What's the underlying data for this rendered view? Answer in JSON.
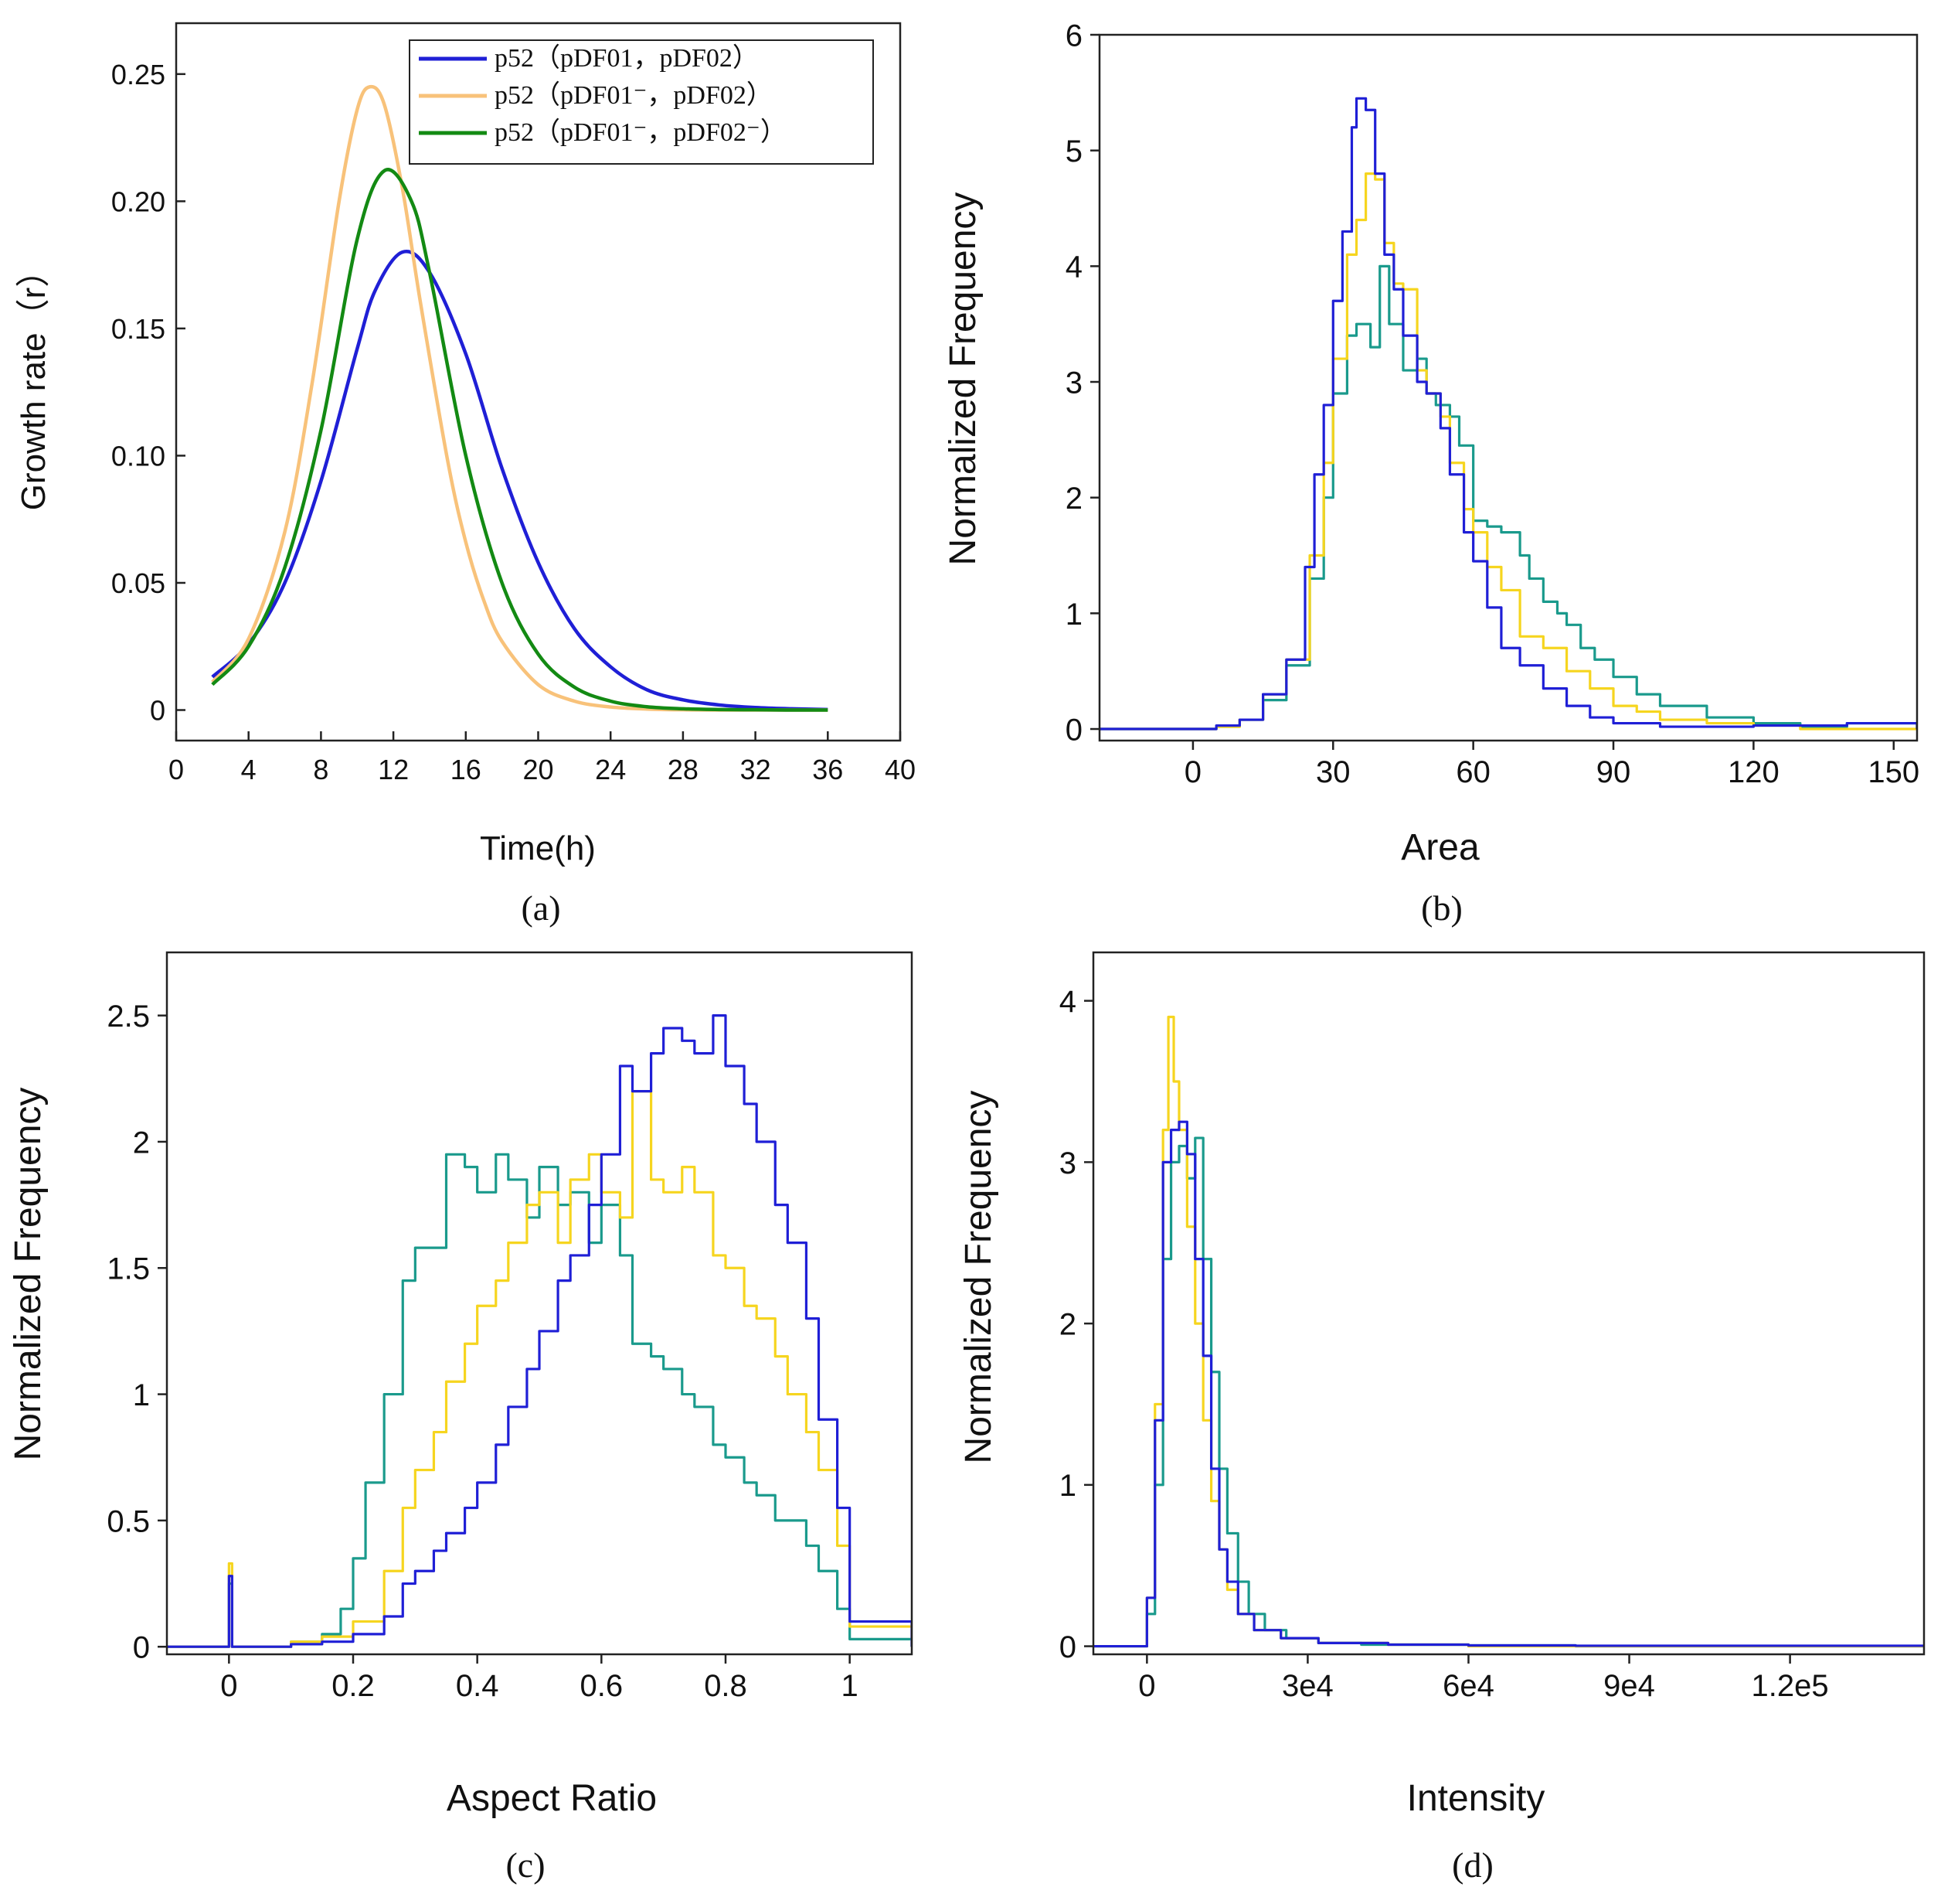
{
  "figure": {
    "panel_tags": [
      "(a)",
      "(b)",
      "(c)",
      "(d)"
    ]
  },
  "colors": {
    "blue": "#1f1fd6",
    "orange": "#f8c27a",
    "green": "#138a13",
    "yellow": "#f6d51f",
    "teal": "#1a9a8c"
  },
  "chart_data": [
    {
      "id": "a",
      "type": "line",
      "title": "",
      "xlabel": "Time(h)",
      "ylabel": "Growth rate（r）",
      "xlim": [
        0,
        40
      ],
      "ylim": [
        -0.012,
        0.27
      ],
      "xticks": [
        0,
        4,
        8,
        12,
        16,
        20,
        24,
        28,
        32,
        36,
        40
      ],
      "xtick_labels": [
        "0",
        "4",
        "8",
        "12",
        "16",
        "20",
        "24",
        "28",
        "32",
        "36",
        "40"
      ],
      "yticks": [
        0,
        0.05,
        0.1,
        0.15,
        0.2,
        0.25
      ],
      "ytick_labels": [
        "0",
        "0.05",
        "0.10",
        "0.15",
        "0.20",
        "0.25"
      ],
      "legend": {
        "position": "top-right",
        "entries": [
          {
            "label": "p52（pDF01，pDF02）",
            "color": "#1f1fd6"
          },
          {
            "label": "p52（pDF01⁻，pDF02）",
            "color": "#f8c27a"
          },
          {
            "label": "p52（pDF01⁻，pDF02⁻）",
            "color": "#138a13"
          }
        ]
      },
      "series": [
        {
          "name": "p52（pDF01，pDF02）",
          "color": "#1f1fd6",
          "x": [
            2,
            4,
            6,
            8,
            10,
            11,
            12.5,
            14,
            16,
            18,
            20,
            22,
            24,
            26,
            28,
            30,
            32,
            34,
            36
          ],
          "y": [
            0.013,
            0.026,
            0.05,
            0.09,
            0.142,
            0.165,
            0.18,
            0.172,
            0.14,
            0.095,
            0.058,
            0.032,
            0.017,
            0.008,
            0.004,
            0.002,
            0.001,
            0.0005,
            0.0002
          ]
        },
        {
          "name": "p52（pDF01⁻，pDF02）",
          "color": "#f8c27a",
          "x": [
            2,
            4,
            6,
            7.5,
            9,
            10,
            10.7,
            11.5,
            12.5,
            13.5,
            15,
            16,
            17,
            18,
            20,
            22,
            24,
            26,
            28,
            30,
            32,
            34,
            36
          ],
          "y": [
            0.011,
            0.028,
            0.07,
            0.128,
            0.2,
            0.236,
            0.245,
            0.238,
            0.205,
            0.16,
            0.098,
            0.066,
            0.043,
            0.027,
            0.01,
            0.0035,
            0.0012,
            0.0004,
            0.0001,
            0,
            0,
            0,
            0
          ]
        },
        {
          "name": "p52（pDF01⁻，pDF02⁻）",
          "color": "#138a13",
          "x": [
            2,
            4,
            6,
            8,
            10,
            11.5,
            13,
            14,
            16,
            18,
            20,
            22,
            24,
            26,
            28,
            30,
            32,
            34,
            36
          ],
          "y": [
            0.01,
            0.025,
            0.056,
            0.11,
            0.185,
            0.212,
            0.2,
            0.172,
            0.1,
            0.05,
            0.022,
            0.009,
            0.0035,
            0.0013,
            0.0005,
            0.0002,
            0.0001,
            0,
            0
          ]
        }
      ]
    },
    {
      "id": "b",
      "type": "step-histogram",
      "title": "",
      "xlabel": "Area",
      "ylabel": "Normalized Frequency",
      "xlim": [
        -20,
        155
      ],
      "ylim": [
        -0.1,
        6
      ],
      "xticks": [
        0,
        30,
        60,
        90,
        120,
        150
      ],
      "xtick_labels": [
        "0",
        "30",
        "60",
        "90",
        "120",
        "150"
      ],
      "yticks": [
        0,
        1,
        2,
        3,
        4,
        5,
        6
      ],
      "ytick_labels": [
        "0",
        "1",
        "2",
        "3",
        "4",
        "5",
        "6"
      ],
      "series": [
        {
          "name": "teal",
          "color": "#1a9a8c",
          "x": [
            -20,
            5,
            10,
            15,
            20,
            25,
            28,
            30,
            33,
            35,
            38,
            40,
            42,
            45,
            48,
            50,
            52,
            55,
            57,
            60,
            63,
            66,
            70,
            72,
            75,
            78,
            80,
            83,
            86,
            90,
            95,
            100,
            110,
            120,
            130,
            140,
            155
          ],
          "y": [
            0,
            0.02,
            0.08,
            0.25,
            0.55,
            1.3,
            2.0,
            2.9,
            3.4,
            3.5,
            3.3,
            4.0,
            3.5,
            3.1,
            3.2,
            2.9,
            2.8,
            2.7,
            2.45,
            1.8,
            1.75,
            1.7,
            1.5,
            1.3,
            1.1,
            1.0,
            0.9,
            0.7,
            0.6,
            0.45,
            0.3,
            0.2,
            0.1,
            0.05,
            0.02,
            0.05,
            0
          ]
        },
        {
          "name": "yellow",
          "color": "#f6d51f",
          "x": [
            -20,
            5,
            10,
            15,
            20,
            25,
            28,
            30,
            33,
            35,
            37,
            39,
            41,
            43,
            45,
            48,
            50,
            53,
            55,
            58,
            60,
            63,
            66,
            70,
            75,
            80,
            85,
            90,
            95,
            100,
            110,
            120,
            130,
            155
          ],
          "y": [
            0,
            0.02,
            0.08,
            0.3,
            0.6,
            1.5,
            2.3,
            3.2,
            4.1,
            4.4,
            4.8,
            4.75,
            4.2,
            3.85,
            3.8,
            3.1,
            2.9,
            2.7,
            2.3,
            1.9,
            1.7,
            1.4,
            1.2,
            0.8,
            0.7,
            0.5,
            0.35,
            0.2,
            0.15,
            0.08,
            0.05,
            0.03,
            0,
            0
          ]
        },
        {
          "name": "blue",
          "color": "#1f1fd6",
          "x": [
            -20,
            5,
            10,
            15,
            20,
            24,
            26,
            28,
            30,
            32,
            34,
            35,
            37,
            39,
            41,
            43,
            45,
            48,
            50,
            53,
            55,
            58,
            60,
            63,
            66,
            70,
            75,
            80,
            85,
            90,
            100,
            110,
            120,
            140,
            155
          ],
          "y": [
            0,
            0.03,
            0.08,
            0.3,
            0.6,
            1.4,
            2.2,
            2.8,
            3.7,
            4.3,
            5.2,
            5.45,
            5.35,
            4.8,
            4.1,
            3.8,
            3.4,
            3.0,
            2.9,
            2.6,
            2.2,
            1.7,
            1.45,
            1.05,
            0.7,
            0.55,
            0.35,
            0.2,
            0.1,
            0.05,
            0.02,
            0.02,
            0.03,
            0.05,
            0
          ]
        }
      ]
    },
    {
      "id": "c",
      "type": "step-histogram",
      "title": "",
      "xlabel": "Aspect Ratio",
      "ylabel": "Normalized Frequency",
      "xlim": [
        -0.1,
        1.1
      ],
      "ylim": [
        -0.03,
        2.75
      ],
      "xticks": [
        0,
        0.2,
        0.4,
        0.6,
        0.8,
        1
      ],
      "xtick_labels": [
        "0",
        "0.2",
        "0.4",
        "0.6",
        "0.8",
        "1"
      ],
      "yticks": [
        0,
        0.5,
        1,
        1.5,
        2,
        2.5
      ],
      "ytick_labels": [
        "0",
        "0.5",
        "1",
        "1.5",
        "2",
        "2.5"
      ],
      "series": [
        {
          "name": "teal",
          "color": "#1a9a8c",
          "x": [
            -0.1,
            0,
            0.005,
            0.1,
            0.15,
            0.18,
            0.2,
            0.22,
            0.25,
            0.28,
            0.3,
            0.33,
            0.35,
            0.38,
            0.4,
            0.43,
            0.45,
            0.48,
            0.5,
            0.53,
            0.55,
            0.58,
            0.6,
            0.63,
            0.65,
            0.68,
            0.7,
            0.73,
            0.75,
            0.78,
            0.8,
            0.83,
            0.85,
            0.88,
            0.9,
            0.93,
            0.95,
            0.98,
            1.0,
            1.1
          ],
          "y": [
            0,
            0.25,
            0,
            0.02,
            0.05,
            0.15,
            0.35,
            0.65,
            1.0,
            1.45,
            1.58,
            1.58,
            1.95,
            1.9,
            1.8,
            1.95,
            1.85,
            1.7,
            1.9,
            1.75,
            1.8,
            1.6,
            1.75,
            1.55,
            1.2,
            1.15,
            1.1,
            1.0,
            0.95,
            0.8,
            0.75,
            0.65,
            0.6,
            0.5,
            0.5,
            0.4,
            0.3,
            0.15,
            0.03,
            0
          ]
        },
        {
          "name": "yellow",
          "color": "#f6d51f",
          "x": [
            -0.1,
            0,
            0.005,
            0.1,
            0.15,
            0.2,
            0.25,
            0.28,
            0.3,
            0.33,
            0.35,
            0.38,
            0.4,
            0.43,
            0.45,
            0.48,
            0.5,
            0.53,
            0.55,
            0.58,
            0.6,
            0.63,
            0.65,
            0.68,
            0.7,
            0.73,
            0.75,
            0.78,
            0.8,
            0.83,
            0.85,
            0.88,
            0.9,
            0.93,
            0.95,
            0.98,
            1.0,
            1.1
          ],
          "y": [
            0,
            0.33,
            0,
            0.02,
            0.04,
            0.1,
            0.3,
            0.55,
            0.7,
            0.85,
            1.05,
            1.2,
            1.35,
            1.45,
            1.6,
            1.75,
            1.8,
            1.6,
            1.85,
            1.95,
            1.8,
            1.7,
            2.2,
            1.85,
            1.8,
            1.9,
            1.8,
            1.55,
            1.5,
            1.35,
            1.3,
            1.15,
            1.0,
            0.85,
            0.7,
            0.4,
            0.08,
            0
          ]
        },
        {
          "name": "blue",
          "color": "#1f1fd6",
          "x": [
            -0.1,
            0,
            0.005,
            0.1,
            0.15,
            0.2,
            0.25,
            0.28,
            0.3,
            0.33,
            0.35,
            0.38,
            0.4,
            0.43,
            0.45,
            0.48,
            0.5,
            0.53,
            0.55,
            0.58,
            0.6,
            0.63,
            0.65,
            0.68,
            0.7,
            0.73,
            0.75,
            0.78,
            0.8,
            0.83,
            0.85,
            0.88,
            0.9,
            0.93,
            0.95,
            0.98,
            1.0,
            1.1
          ],
          "y": [
            0,
            0.28,
            0,
            0.01,
            0.02,
            0.05,
            0.12,
            0.25,
            0.3,
            0.38,
            0.45,
            0.55,
            0.65,
            0.8,
            0.95,
            1.1,
            1.25,
            1.45,
            1.55,
            1.75,
            1.95,
            2.3,
            2.2,
            2.35,
            2.45,
            2.4,
            2.35,
            2.5,
            2.3,
            2.15,
            2.0,
            1.75,
            1.6,
            1.3,
            0.9,
            0.55,
            0.1,
            0
          ]
        }
      ]
    },
    {
      "id": "d",
      "type": "step-histogram",
      "title": "",
      "xlabel": "Intensity",
      "ylabel": "Normalized Frequency",
      "xlim": [
        -10000,
        145000
      ],
      "ylim": [
        -0.05,
        4.3
      ],
      "xticks": [
        0,
        30000,
        60000,
        90000,
        120000
      ],
      "xtick_labels": [
        "0",
        "3e4",
        "6e4",
        "9e4",
        "1.2e5"
      ],
      "yticks": [
        0,
        1,
        2,
        3,
        4
      ],
      "ytick_labels": [
        "0",
        "1",
        "2",
        "3",
        "4"
      ],
      "series": [
        {
          "name": "teal",
          "color": "#1a9a8c",
          "x": [
            -10000,
            0,
            1500,
            3000,
            4500,
            6000,
            7500,
            9000,
            10500,
            12000,
            13500,
            15000,
            17000,
            19000,
            22000,
            26000,
            32000,
            40000,
            60000,
            80000,
            145000
          ],
          "y": [
            0,
            0.2,
            1.0,
            2.4,
            3.0,
            3.1,
            2.9,
            3.15,
            2.4,
            1.7,
            1.1,
            0.7,
            0.4,
            0.2,
            0.1,
            0.05,
            0.02,
            0.01,
            0.005,
            0,
            0
          ]
        },
        {
          "name": "yellow",
          "color": "#f6d51f",
          "x": [
            -10000,
            0,
            1500,
            3000,
            4000,
            5000,
            6000,
            7500,
            9000,
            10500,
            12000,
            13500,
            15000,
            17000,
            20000,
            25000,
            32000,
            45000,
            60000,
            80000,
            145000
          ],
          "y": [
            0,
            0.3,
            1.5,
            3.2,
            3.9,
            3.5,
            3.2,
            2.6,
            2.0,
            1.4,
            0.9,
            0.6,
            0.35,
            0.2,
            0.1,
            0.05,
            0.02,
            0.01,
            0,
            0,
            0
          ]
        },
        {
          "name": "blue",
          "color": "#1f1fd6",
          "x": [
            -10000,
            0,
            1500,
            3000,
            4500,
            6000,
            7500,
            9000,
            10500,
            12000,
            13500,
            15000,
            17000,
            20000,
            25000,
            32000,
            45000,
            60000,
            80000,
            145000
          ],
          "y": [
            0,
            0.3,
            1.4,
            3.0,
            3.2,
            3.25,
            3.05,
            2.4,
            1.8,
            1.1,
            0.6,
            0.4,
            0.2,
            0.1,
            0.05,
            0.02,
            0.01,
            0.005,
            0.003,
            0
          ]
        }
      ]
    }
  ]
}
